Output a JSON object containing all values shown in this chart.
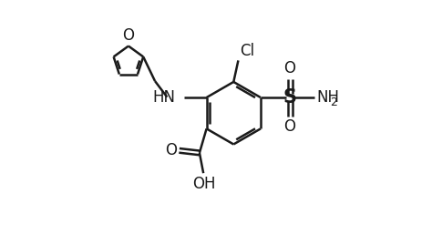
{
  "background_color": "#ffffff",
  "line_color": "#1a1a1a",
  "line_width": 1.8,
  "font_size": 12,
  "sub_font_size": 9,
  "xlim": [
    0.0,
    9.5
  ],
  "ylim": [
    0.5,
    6.5
  ],
  "bx": 5.2,
  "by": 3.6,
  "ring_r": 0.8
}
